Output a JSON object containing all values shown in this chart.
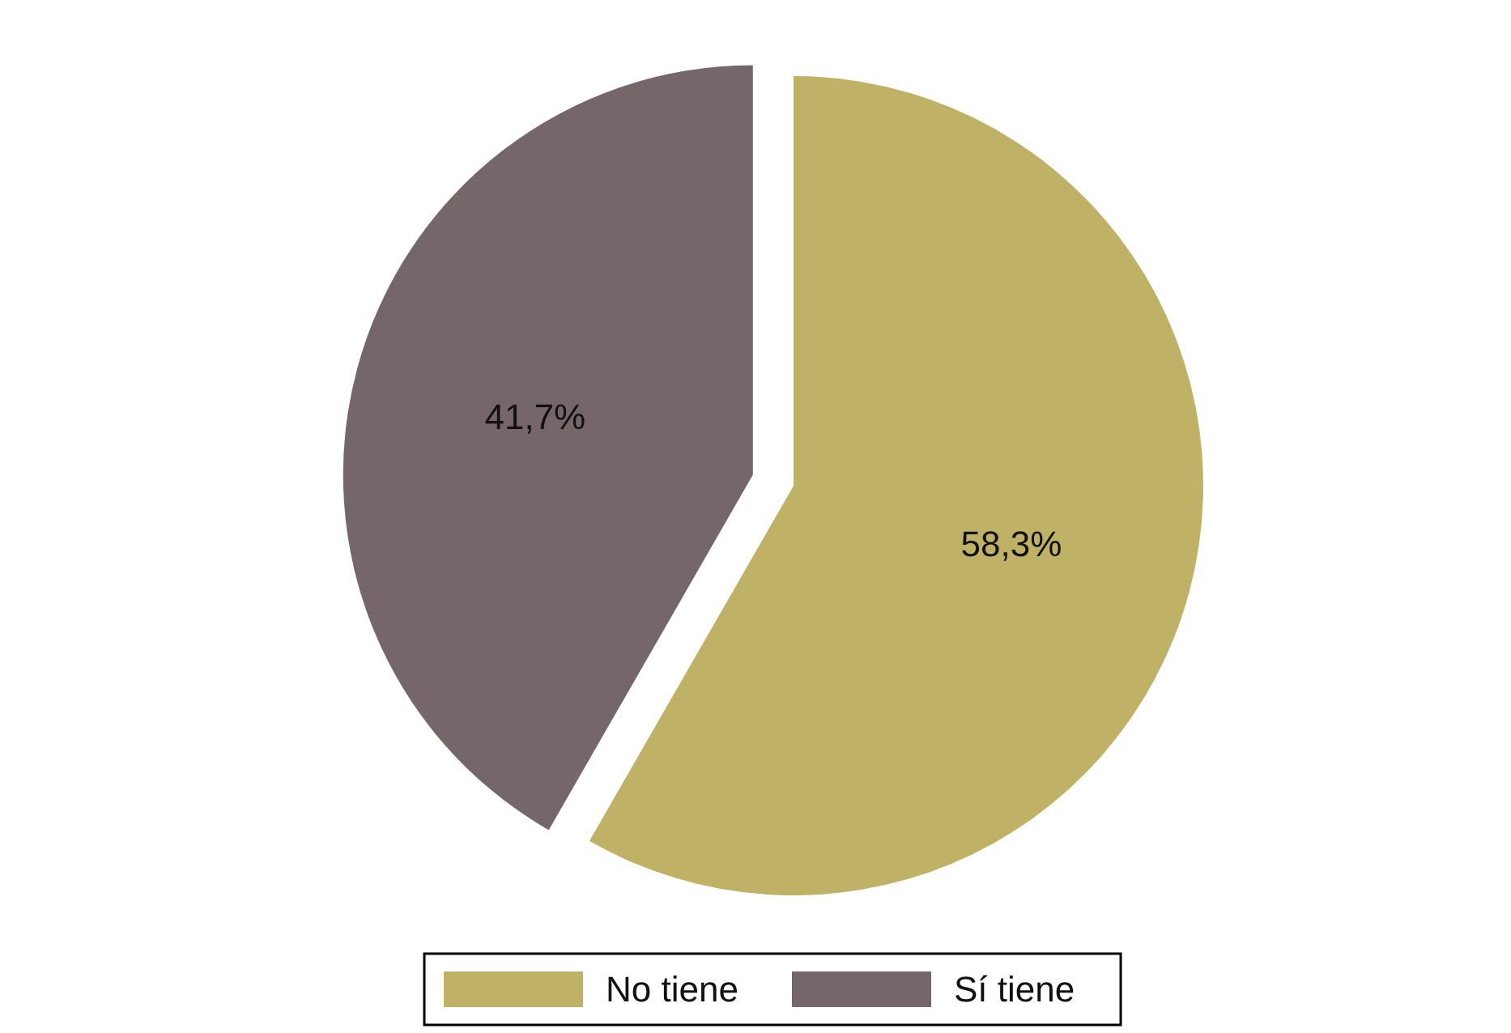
{
  "chart_data": {
    "type": "pie",
    "categories": [
      "No tiene",
      "Sí tiene"
    ],
    "values": [
      58.3,
      41.7
    ],
    "value_labels": [
      "58,3%",
      "41,7%"
    ],
    "colors": [
      "#bfb267",
      "#75666a"
    ],
    "legend": "bottom"
  }
}
